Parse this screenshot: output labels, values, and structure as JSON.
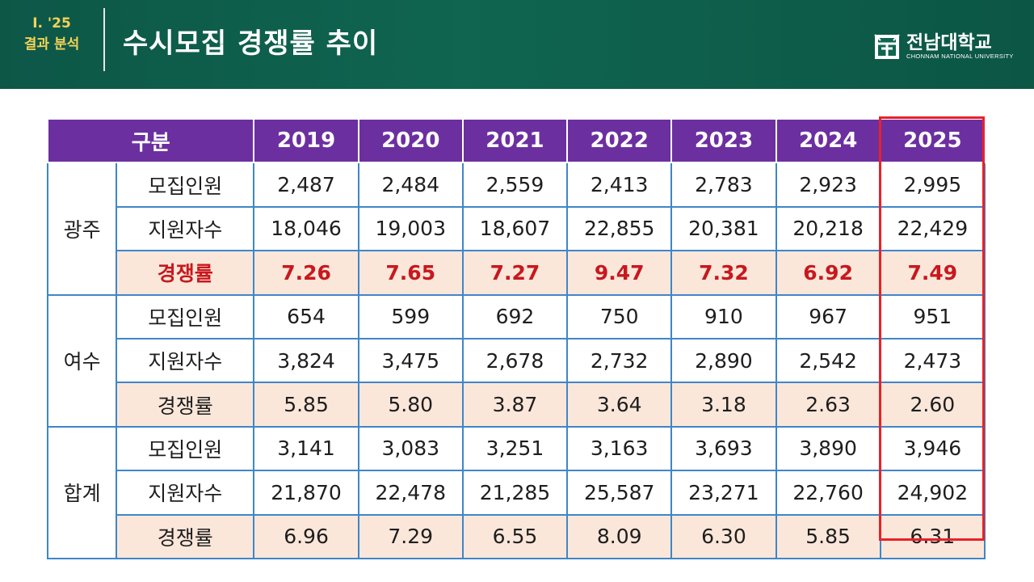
{
  "header": {
    "section_line1": "Ⅰ. '25",
    "section_line2": "결과 분석",
    "title": "수시모집 경쟁률 추이",
    "logo": {
      "name_kr": "전남대학교",
      "name_en": "CHONNAM NATIONAL UNIVERSITY",
      "icon": "university-emblem-icon"
    },
    "bg_color": "#0f6550",
    "section_color": "#f3d257"
  },
  "table": {
    "header_label": "구분",
    "years": [
      "2019",
      "2020",
      "2021",
      "2022",
      "2023",
      "2024",
      "2025"
    ],
    "highlight_year": "2025",
    "groups": [
      {
        "region": "광주",
        "rows": [
          {
            "label": "모집인원",
            "values": [
              "2,487",
              "2,484",
              "2,559",
              "2,413",
              "2,783",
              "2,923",
              "2,995"
            ]
          },
          {
            "label": "지원자수",
            "values": [
              "18,046",
              "19,003",
              "18,607",
              "22,855",
              "20,381",
              "20,218",
              "22,429"
            ]
          },
          {
            "label": "경쟁률",
            "values": [
              "7.26",
              "7.65",
              "7.27",
              "9.47",
              "7.32",
              "6.92",
              "7.49"
            ]
          }
        ]
      },
      {
        "region": "여수",
        "rows": [
          {
            "label": "모집인원",
            "values": [
              "654",
              "599",
              "692",
              "750",
              "910",
              "967",
              "951"
            ]
          },
          {
            "label": "지원자수",
            "values": [
              "3,824",
              "3,475",
              "2,678",
              "2,732",
              "2,890",
              "2,542",
              "2,473"
            ]
          },
          {
            "label": "경쟁률",
            "values": [
              "5.85",
              "5.80",
              "3.87",
              "3.64",
              "3.18",
              "2.63",
              "2.60"
            ]
          }
        ]
      },
      {
        "region": "합계",
        "rows": [
          {
            "label": "모집인원",
            "values": [
              "3,141",
              "3,083",
              "3,251",
              "3,163",
              "3,693",
              "3,890",
              "3,946"
            ]
          },
          {
            "label": "지원자수",
            "values": [
              "21,870",
              "22,478",
              "21,285",
              "25,587",
              "23,271",
              "22,760",
              "24,902"
            ]
          },
          {
            "label": "경쟁률",
            "values": [
              "6.96",
              "7.29",
              "6.55",
              "8.09",
              "6.30",
              "5.85",
              "6.31"
            ]
          }
        ]
      }
    ],
    "colors": {
      "header_bg": "#6c2fa0",
      "border": "#3f86c8",
      "rate_row_bg": "#fbe7da",
      "emphasis_text": "#c8181e",
      "highlight_box": "#e8222a"
    }
  }
}
